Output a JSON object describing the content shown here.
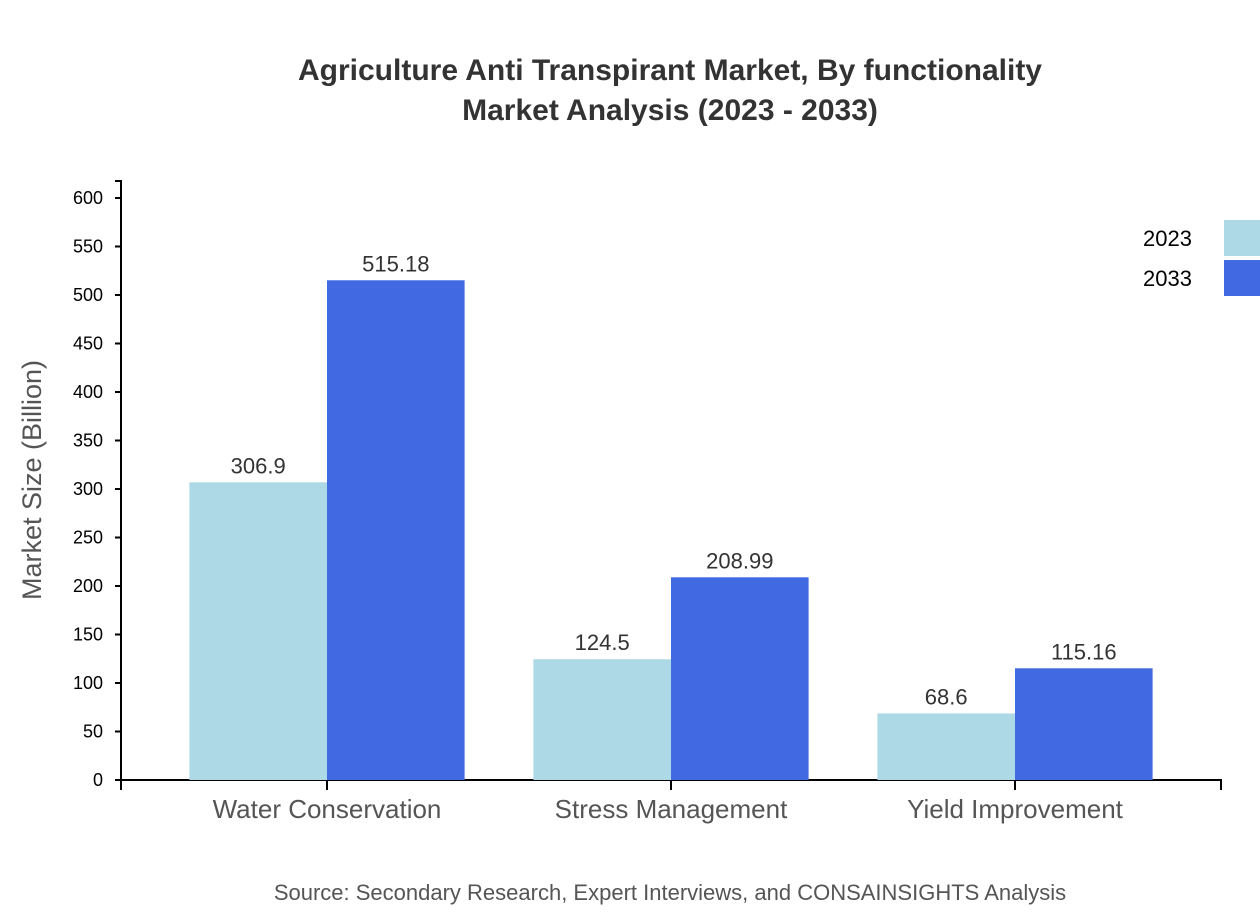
{
  "chart_data": {
    "type": "bar",
    "title": "Agriculture Anti Transpirant Market, By functionality",
    "subtitle": "Market Analysis (2023 - 2033)",
    "xlabel": "",
    "ylabel": "Market Size (Billion)",
    "categories": [
      "Water Conservation",
      "Stress Management",
      "Yield Improvement"
    ],
    "series": [
      {
        "name": "2023",
        "values": [
          306.9,
          124.5,
          68.6
        ],
        "labels": [
          "306.9",
          "124.5",
          "68.6"
        ],
        "color": "#ADD8E6"
      },
      {
        "name": "2033",
        "values": [
          515.18,
          208.99,
          115.16
        ],
        "labels": [
          "515.18",
          "208.99",
          "115.16"
        ],
        "color": "#4169E1"
      }
    ],
    "ylim": [
      0,
      600
    ],
    "yticks": [
      "0",
      "50",
      "100",
      "150",
      "200",
      "250",
      "300",
      "350",
      "400",
      "450",
      "500",
      "550",
      "600"
    ],
    "grid": false,
    "legend": "top-right",
    "source": "Source: Secondary Research, Expert Interviews, and CONSAINSIGHTS Analysis"
  }
}
